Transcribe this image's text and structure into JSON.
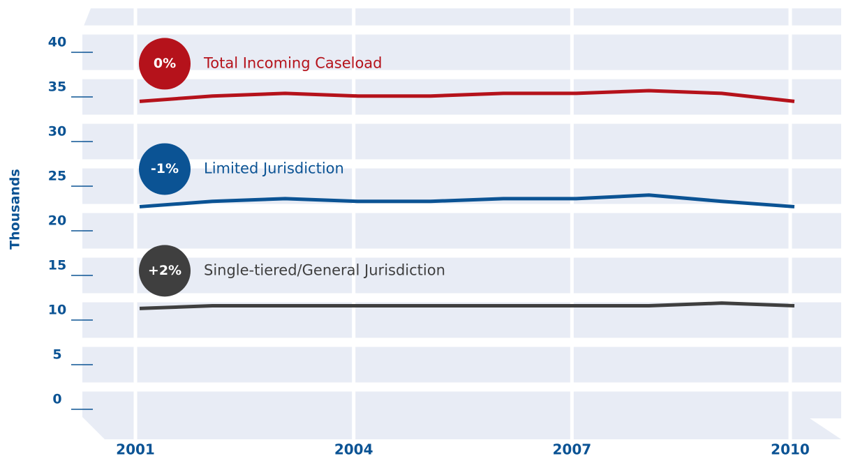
{
  "chart_data": {
    "type": "line",
    "y_label": "Thousands",
    "x": [
      2001,
      2002,
      2003,
      2004,
      2005,
      2006,
      2007,
      2008,
      2009,
      2010
    ],
    "xlim": [
      2001,
      2010
    ],
    "xticks": [
      2001,
      2004,
      2007,
      2010
    ],
    "ylim": [
      0,
      40
    ],
    "yticks": [
      0,
      5,
      10,
      15,
      20,
      25,
      30,
      35,
      40
    ],
    "grid": true,
    "series": [
      {
        "name": "Total Incoming Caseload",
        "change": "0%",
        "color": "#b5121b",
        "values": [
          34.5,
          35.1,
          35.4,
          35.1,
          35.1,
          35.4,
          35.4,
          35.7,
          35.4,
          34.5
        ]
      },
      {
        "name": "Limited Jurisdiction",
        "change": "-1%",
        "color": "#0b5394",
        "values": [
          22.7,
          23.3,
          23.6,
          23.3,
          23.3,
          23.6,
          23.6,
          24.0,
          23.3,
          22.7
        ]
      },
      {
        "name": "Single-tiered/General Jurisdiction",
        "change": "+2%",
        "color": "#3f3f3f",
        "values": [
          11.3,
          11.6,
          11.6,
          11.6,
          11.6,
          11.6,
          11.6,
          11.6,
          11.9,
          11.6
        ]
      }
    ]
  }
}
